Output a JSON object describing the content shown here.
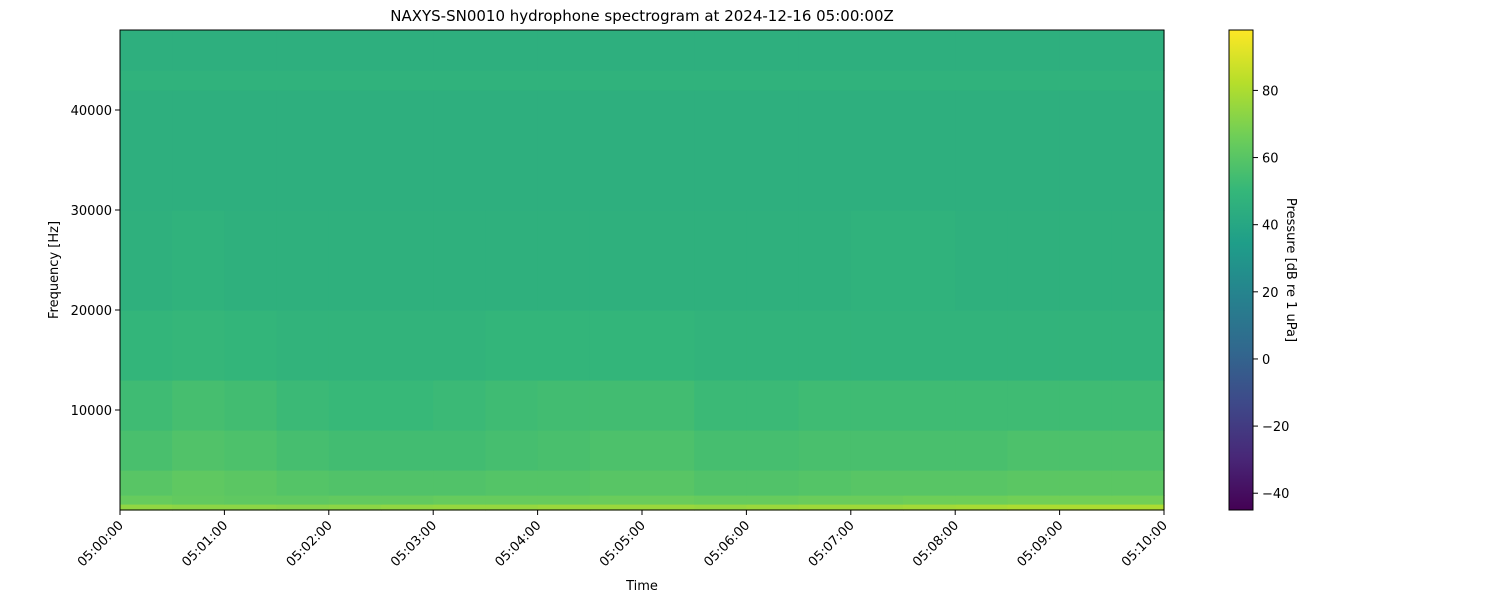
{
  "chart_data": {
    "type": "heatmap",
    "title": "NAXYS-SN0010 hydrophone spectrogram at 2024-12-16 05:00:00Z",
    "xlabel": "Time",
    "ylabel": "Frequency [Hz]",
    "colorbar_label": "Pressure [dB re 1 uPa]",
    "colormap": "viridis",
    "clim": [
      -45,
      98
    ],
    "xlim": [
      "05:00:00",
      "05:10:00"
    ],
    "ylim": [
      0,
      48000
    ],
    "x_ticks": [
      "05:00:00",
      "05:01:00",
      "05:02:00",
      "05:03:00",
      "05:04:00",
      "05:05:00",
      "05:06:00",
      "05:07:00",
      "05:08:00",
      "05:09:00",
      "05:10:00"
    ],
    "y_ticks": [
      10000,
      20000,
      30000,
      40000
    ],
    "colorbar_ticks": [
      -40,
      -20,
      0,
      20,
      40,
      60,
      80
    ],
    "time_bin_seconds": 30,
    "frequency_band_edges_hz": [
      0,
      600,
      1500,
      4000,
      8000,
      13000,
      20000,
      30000,
      42000,
      44000,
      48000
    ],
    "levels_db": [
      [
        74,
        73,
        73,
        72,
        73,
        74,
        75,
        75,
        76,
        76,
        76,
        75,
        76,
        77,
        77,
        78,
        79,
        80,
        80,
        80
      ],
      [
        64,
        63,
        62,
        62,
        63,
        63,
        64,
        64,
        64,
        65,
        65,
        64,
        64,
        65,
        65,
        66,
        66,
        67,
        67,
        67
      ],
      [
        60,
        62,
        61,
        59,
        58,
        58,
        58,
        59,
        59,
        60,
        60,
        58,
        58,
        59,
        60,
        60,
        60,
        61,
        61,
        61
      ],
      [
        56,
        58,
        57,
        55,
        54,
        54,
        54,
        55,
        56,
        57,
        57,
        55,
        55,
        56,
        56,
        56,
        56,
        57,
        57,
        57
      ],
      [
        53,
        55,
        54,
        52,
        51,
        51,
        52,
        53,
        54,
        54,
        54,
        52,
        52,
        53,
        53,
        53,
        53,
        53,
        53,
        53
      ],
      [
        49,
        50,
        49,
        48,
        48,
        48,
        48,
        49,
        49,
        49,
        49,
        48,
        48,
        48,
        48,
        48,
        48,
        48,
        48,
        48
      ],
      [
        46,
        47,
        46,
        46,
        46,
        46,
        46,
        46,
        46,
        46,
        46,
        46,
        46,
        46,
        47,
        47,
        46,
        46,
        46,
        46
      ],
      [
        45,
        45,
        45,
        45,
        45,
        45,
        45,
        45,
        45,
        45,
        45,
        45,
        45,
        45,
        45,
        45,
        45,
        45,
        45,
        45
      ],
      [
        47,
        47,
        47,
        47,
        47,
        47,
        47,
        47,
        47,
        47,
        47,
        47,
        47,
        47,
        47,
        47,
        47,
        47,
        47,
        47
      ],
      [
        45,
        45,
        45,
        45,
        45,
        45,
        45,
        45,
        45,
        45,
        45,
        45,
        45,
        45,
        45,
        45,
        45,
        45,
        45,
        45
      ]
    ]
  }
}
